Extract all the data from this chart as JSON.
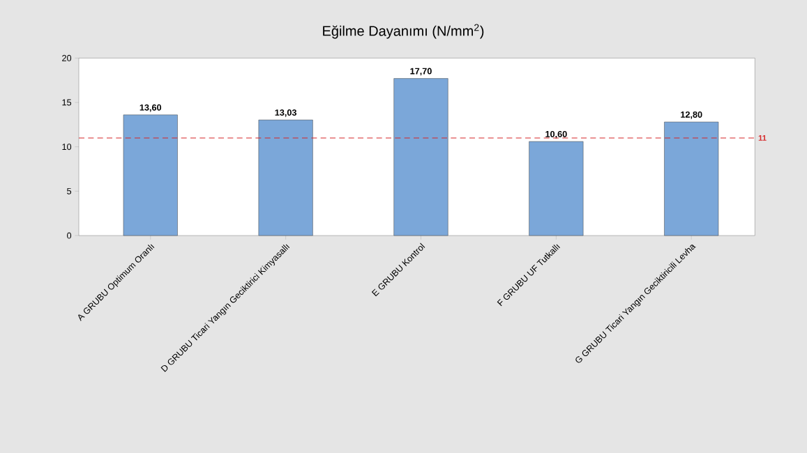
{
  "chart_data": {
    "type": "bar",
    "title": "Eğilme Dayanımı (N/mm$^{2}$)",
    "categories": [
      "A GRUBU Optimum Oranlı",
      "D GRUBU Ticari Yangın Geciktirici Kimyasallı",
      "E GRUBU Kontrol",
      "F GRUBU UF Tutkallı",
      "G GRUBU Ticari Yangın Geciktiricili Levha"
    ],
    "values": [
      13.6,
      13.03,
      17.7,
      10.6,
      12.8
    ],
    "value_labels": [
      "13,60",
      "13,03",
      "17,70",
      "10,60",
      "12,80"
    ],
    "color": "#7ba7d9",
    "ylim": [
      0,
      20
    ],
    "yticks": [
      0,
      5,
      10,
      15,
      20
    ],
    "ref_lines": [
      {
        "axis": "y",
        "value": 11,
        "label": "11",
        "color": "#d62728",
        "line_style": "dashed"
      }
    ],
    "grid": false
  }
}
